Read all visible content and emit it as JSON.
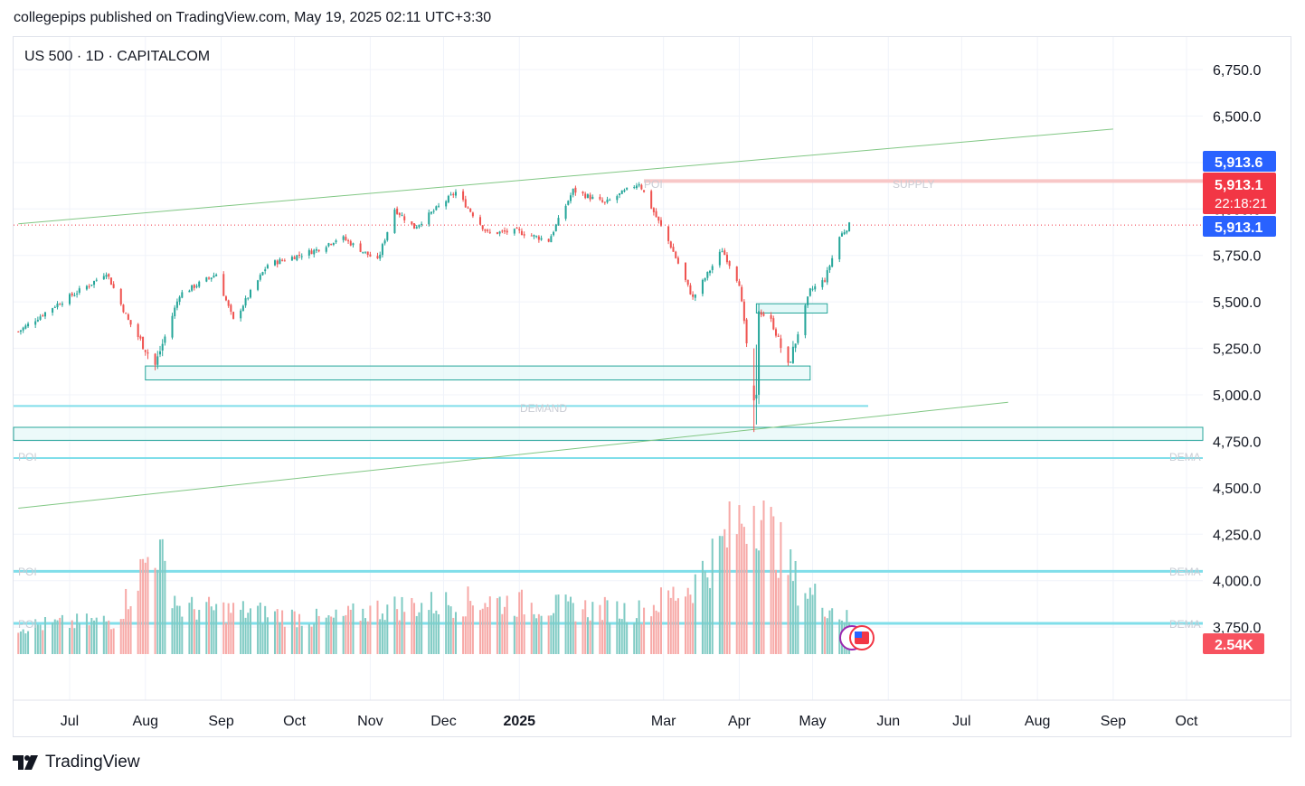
{
  "header": {
    "text": "collegepips published on TradingView.com, May 19, 2025 02:11 UTC+3:30"
  },
  "symbol": {
    "text": "US 500 · 1D · CAPITALCOM"
  },
  "footer": {
    "brand": "TradingView"
  },
  "colors": {
    "up": "#26a69a",
    "down": "#ef5350",
    "zone_fill": "#e0f7f7",
    "zone_border": "#26a69a",
    "level_line": "#80deea",
    "trend_line": "#81c784",
    "supply_line": "#f8c7c7",
    "label_blue": "#2962ff",
    "label_red": "#f23645"
  },
  "price_labels": {
    "ask": "5,913.6",
    "last": "5,913.1",
    "countdown": "22:18:21",
    "bid": "5,913.1",
    "volume": "2.54K"
  },
  "zone_labels": {
    "supply": "SUPPLY",
    "poi_top": "POI",
    "demand": "DEMAND",
    "poi_1": "POI",
    "dema_1": "DEMA",
    "poi_2": "POI",
    "dema_2": "DEMA",
    "poi_3": "POI",
    "dema_3": "DEMA"
  },
  "chart_data": {
    "type": "candlestick",
    "symbol": "US 500",
    "interval": "1D",
    "exchange": "CAPITALCOM",
    "ylim": [
      3720,
      6900
    ],
    "y_ticks": [
      "6,750.0",
      "6,500.0",
      "6,250.0",
      "6,000.0",
      "5,750.0",
      "5,500.0",
      "5,250.0",
      "5,000.0",
      "4,750.0",
      "4,500.0",
      "4,250.0",
      "4,000.0",
      "3,750.0"
    ],
    "y_tick_values": [
      6750,
      6500,
      6250,
      6000,
      5750,
      5500,
      5250,
      5000,
      4750,
      4500,
      4250,
      4000,
      3750
    ],
    "x_ticks": [
      "Jul",
      "Aug",
      "Sep",
      "Oct",
      "Nov",
      "Dec",
      "2025",
      "Mar",
      "Apr",
      "May",
      "Jun",
      "Jul",
      "Aug",
      "Sep",
      "Oct"
    ],
    "x_tick_dates": [
      "2024-07-01",
      "2024-08-01",
      "2024-09-01",
      "2024-10-01",
      "2024-11-01",
      "2024-12-01",
      "2025-01-01",
      "2025-03-01",
      "2025-04-01",
      "2025-05-01",
      "2025-06-01",
      "2025-07-01",
      "2025-08-01",
      "2025-09-01",
      "2025-10-01"
    ],
    "last_price": 5913.1,
    "ask_price": 5913.6,
    "last_volume": "2.54K",
    "anchors": [
      [
        "2024-06-10",
        5340
      ],
      [
        "2024-06-25",
        5480
      ],
      [
        "2024-07-10",
        5600
      ],
      [
        "2024-07-16",
        5660
      ],
      [
        "2024-07-25",
        5400
      ],
      [
        "2024-08-05",
        5160
      ],
      [
        "2024-08-15",
        5540
      ],
      [
        "2024-08-30",
        5650
      ],
      [
        "2024-09-06",
        5400
      ],
      [
        "2024-09-20",
        5700
      ],
      [
        "2024-10-10",
        5780
      ],
      [
        "2024-10-20",
        5850
      ],
      [
        "2024-11-04",
        5720
      ],
      [
        "2024-11-11",
        6000
      ],
      [
        "2024-11-19",
        5900
      ],
      [
        "2024-12-06",
        6090
      ],
      [
        "2024-12-19",
        5870
      ],
      [
        "2024-12-31",
        5880
      ],
      [
        "2025-01-13",
        5830
      ],
      [
        "2025-01-23",
        6100
      ],
      [
        "2025-02-05",
        6030
      ],
      [
        "2025-02-19",
        6140
      ],
      [
        "2025-03-04",
        5800
      ],
      [
        "2025-03-13",
        5520
      ],
      [
        "2025-03-25",
        5780
      ],
      [
        "2025-04-01",
        5600
      ],
      [
        "2025-04-07",
        4950
      ],
      [
        "2025-04-09",
        5450
      ],
      [
        "2025-04-14",
        5400
      ],
      [
        "2025-04-21",
        5150
      ],
      [
        "2025-04-30",
        5560
      ],
      [
        "2025-05-06",
        5620
      ],
      [
        "2025-05-12",
        5850
      ],
      [
        "2025-05-16",
        5913
      ]
    ],
    "volume_anchors": [
      [
        "2024-06-10",
        0.18
      ],
      [
        "2024-07-20",
        0.22
      ],
      [
        "2024-08-05",
        0.72
      ],
      [
        "2024-08-15",
        0.3
      ],
      [
        "2024-09-10",
        0.28
      ],
      [
        "2024-10-15",
        0.22
      ],
      [
        "2024-11-06",
        0.3
      ],
      [
        "2024-12-18",
        0.35
      ],
      [
        "2025-01-20",
        0.3
      ],
      [
        "2025-02-20",
        0.28
      ],
      [
        "2025-03-13",
        0.45
      ],
      [
        "2025-04-07",
        1.0
      ],
      [
        "2025-04-12",
        0.85
      ],
      [
        "2025-04-25",
        0.45
      ],
      [
        "2025-05-16",
        0.22
      ]
    ],
    "trend_lines": [
      {
        "from": [
          "2024-06-10",
          5920
        ],
        "to": [
          "2025-09-01",
          6430
        ]
      },
      {
        "from": [
          "2024-06-10",
          4390
        ],
        "to": [
          "2025-07-20",
          4960
        ]
      }
    ],
    "zones": [
      {
        "label": "DEMAND",
        "from": "2024-08-01",
        "to": "2025-04-30",
        "low": 5080,
        "high": 5155
      },
      {
        "label": "",
        "from": "2025-04-08",
        "to": "2025-05-07",
        "low": 5440,
        "high": 5490
      },
      {
        "label": "POI",
        "from": "2024-06-10",
        "to": "2025-10-15",
        "low": 4755,
        "high": 4825
      }
    ],
    "levels": [
      {
        "label": "DEMAND",
        "price": 4940
      },
      {
        "label": "POI / DEMA",
        "price": 4660
      },
      {
        "label": "POI / DEMA",
        "price": 4050
      },
      {
        "label": "POI / DEMA",
        "price": 3770
      },
      {
        "label": "SUPPLY",
        "price": 6150
      }
    ]
  }
}
